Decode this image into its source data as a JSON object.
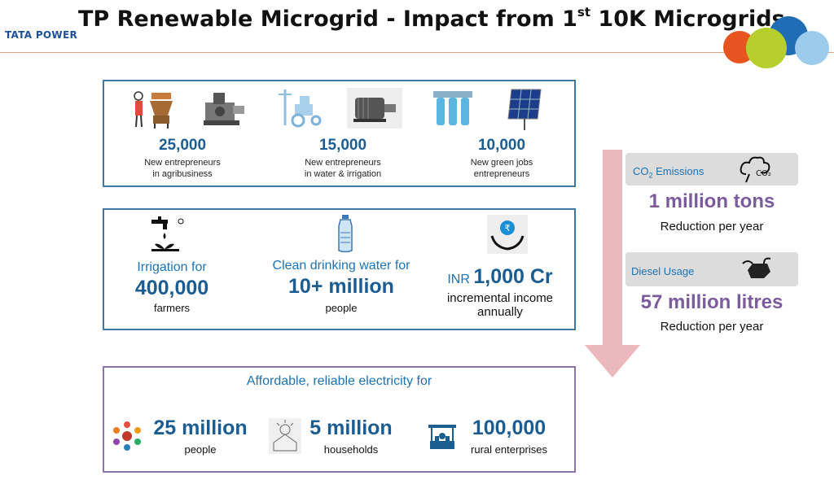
{
  "header": {
    "logo": "TATA POWER",
    "title_main": "TP Renewable Microgrid - Impact from 1",
    "title_sup": "st",
    "title_end": " 10K Microgrids"
  },
  "entrepreneurs": [
    {
      "value": "25,000",
      "line1": "New entrepreneurs",
      "line2": "in agribusiness"
    },
    {
      "value": "15,000",
      "line1": "New entrepreneurs",
      "line2": "in water & irrigation"
    },
    {
      "value": "10,000",
      "line1": "New green jobs",
      "line2": "entrepreneurs"
    }
  ],
  "benefits": {
    "irrigation": {
      "label": "Irrigation for",
      "value": "400,000",
      "unit": "farmers"
    },
    "water": {
      "label": "Clean drinking water for",
      "value": "10+ million",
      "unit": "people"
    },
    "income": {
      "prefix": "INR",
      "value": "1,000 Cr",
      "line1": "incremental income",
      "line2": "annually"
    }
  },
  "electricity": {
    "heading": "Affordable, reliable electricity for",
    "items": [
      {
        "value": "25 million",
        "unit": "people"
      },
      {
        "value": "5 million",
        "unit": "households"
      },
      {
        "value": "100,000",
        "unit": "rural enterprises"
      }
    ]
  },
  "impact": {
    "co2": {
      "label_pre": "CO",
      "label_sub": "2",
      "label_post": " Emissions",
      "icon_text": "CO₂",
      "value": "1 million tons",
      "desc": "Reduction per year"
    },
    "diesel": {
      "label": "Diesel Usage",
      "value": "57 million litres",
      "desc": "Reduction per year"
    }
  },
  "colors": {
    "blue": "#1b5d93",
    "purple": "#7b5a9e",
    "arrow": "#ebb8bd",
    "border_blue": "#3c79a8",
    "border_purple": "#8c74ad"
  }
}
